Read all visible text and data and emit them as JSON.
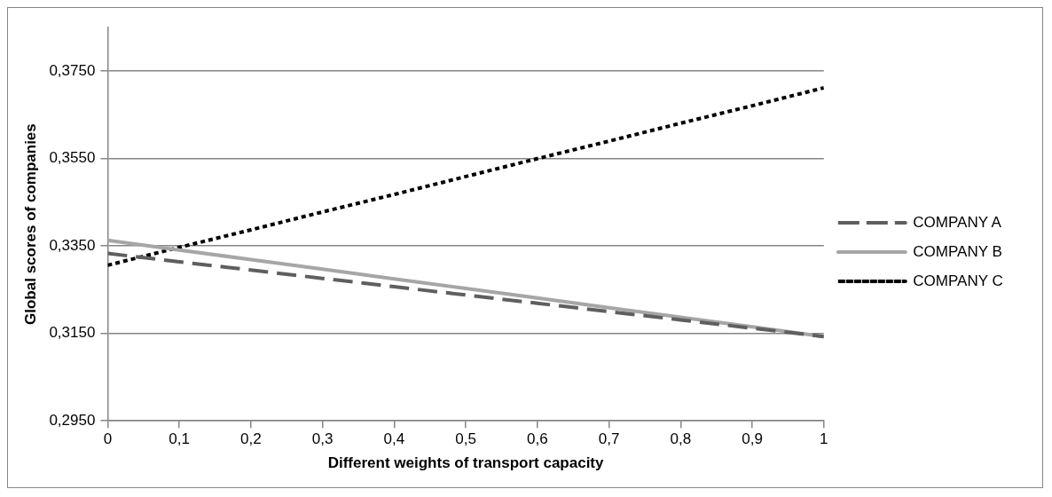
{
  "chart_data": {
    "type": "line",
    "xlabel": "Different weights of transport capacity",
    "ylabel": "Global scores of companies",
    "x": [
      0,
      0.1,
      0.2,
      0.3,
      0.4,
      0.5,
      0.6,
      0.7,
      0.8,
      0.9,
      1
    ],
    "series": [
      {
        "name": "COMPANY A",
        "color": "#5f5f5f",
        "line_style": "dashed",
        "values": [
          0.3333,
          0.3314,
          0.3295,
          0.3276,
          0.3257,
          0.3238,
          0.3219,
          0.32,
          0.3181,
          0.3162,
          0.3143
        ]
      },
      {
        "name": "COMPANY B",
        "color": "#a6a6a6",
        "line_style": "solid",
        "values": [
          0.3363,
          0.3341,
          0.3319,
          0.3297,
          0.3275,
          0.3253,
          0.3231,
          0.3209,
          0.3187,
          0.3165,
          0.3143
        ]
      },
      {
        "name": "COMPANY C",
        "color": "#000000",
        "line_style": "dotted",
        "values": [
          0.3306,
          0.3347,
          0.3387,
          0.3428,
          0.3468,
          0.3509,
          0.355,
          0.359,
          0.3631,
          0.3671,
          0.3712
        ]
      }
    ],
    "xlim": [
      0,
      1
    ],
    "xticks": [
      0,
      {
        "value": 0.1,
        "label": "0,1"
      },
      {
        "value": 0.2,
        "label": "0,2"
      },
      {
        "value": 0.3,
        "label": "0,3"
      },
      {
        "value": 0.4,
        "label": "0,4"
      },
      {
        "value": 0.5,
        "label": "0,5"
      },
      {
        "value": 0.6,
        "label": "0,6"
      },
      {
        "value": 0.7,
        "label": "0,7"
      },
      {
        "value": 0.8,
        "label": "0,8"
      },
      {
        "value": 0.9,
        "label": "0,9"
      },
      1
    ],
    "ylim": [
      0.295,
      0.385
    ],
    "yticks": [
      {
        "value": 0.295,
        "label": "0,2950"
      },
      {
        "value": 0.315,
        "label": "0,3150"
      },
      {
        "value": 0.335,
        "label": "0,3350"
      },
      {
        "value": 0.355,
        "label": "0,3550"
      },
      {
        "value": 0.375,
        "label": "0,3750"
      }
    ],
    "grid": "y",
    "legend": "right",
    "marker": "none"
  }
}
